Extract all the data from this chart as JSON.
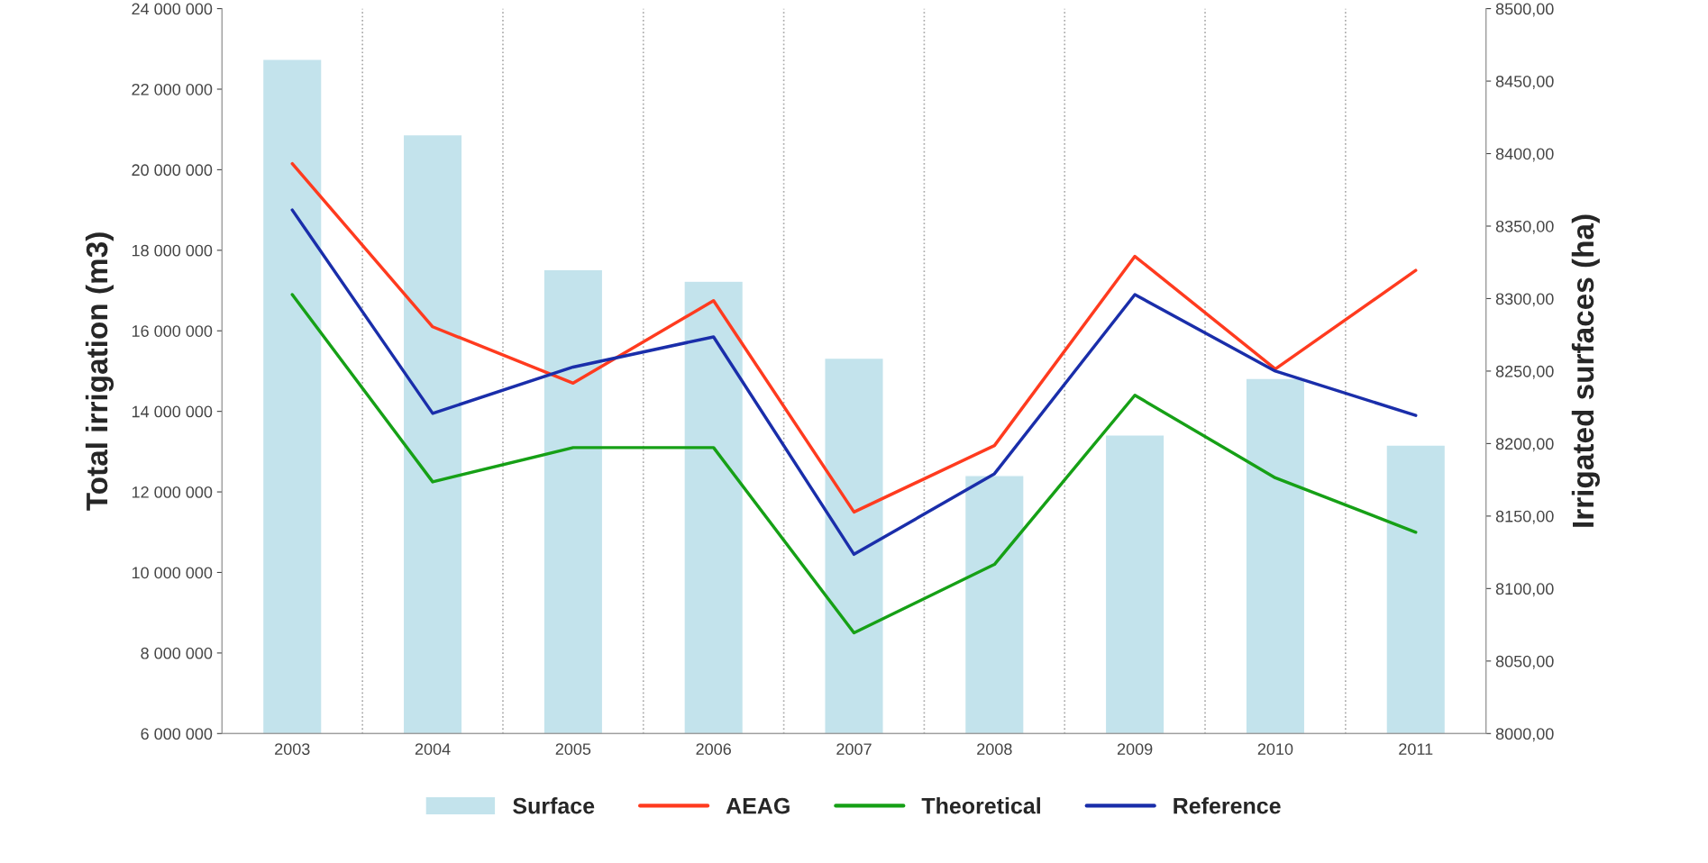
{
  "chart_data": {
    "type": "line",
    "ylabel": "Total irrigation (m3)",
    "y2label": "Irrigated surfaces (ha)",
    "categories": [
      "2003",
      "2004",
      "2005",
      "2006",
      "2007",
      "2008",
      "2009",
      "2010",
      "2011"
    ],
    "series": [
      {
        "name": "Surface",
        "type": "bar",
        "axis": "y2",
        "color": "#c3e3ec",
        "values": [
          8465,
          8413,
          8320,
          8312,
          8259,
          8178,
          8206,
          8245,
          8199
        ]
      },
      {
        "name": "AEAG",
        "color": "#ff3b1f",
        "values": [
          20150000,
          16100000,
          14700000,
          16750000,
          11500000,
          13150000,
          17850000,
          15050000,
          17500000
        ]
      },
      {
        "name": "Theoretical",
        "color": "#16a016",
        "values": [
          16900000,
          12250000,
          13100000,
          13100000,
          8500000,
          10200000,
          14400000,
          12350000,
          11000000
        ]
      },
      {
        "name": "Reference",
        "color": "#1a2eaa",
        "values": [
          19000000,
          13950000,
          15100000,
          15850000,
          10450000,
          12450000,
          16900000,
          15000000,
          13900000
        ]
      }
    ],
    "ylim": [
      6000000,
      24000000
    ],
    "yticks": [
      {
        "value": 6000000,
        "label": "6 000 000"
      },
      {
        "value": 8000000,
        "label": "8 000 000"
      },
      {
        "value": 10000000,
        "label": "10 000 000"
      },
      {
        "value": 12000000,
        "label": "12 000 000"
      },
      {
        "value": 14000000,
        "label": "14 000 000"
      },
      {
        "value": 16000000,
        "label": "16 000 000"
      },
      {
        "value": 18000000,
        "label": "18 000 000"
      },
      {
        "value": 20000000,
        "label": "20 000 000"
      },
      {
        "value": 22000000,
        "label": "22 000 000"
      },
      {
        "value": 24000000,
        "label": "24 000 000"
      }
    ],
    "y2lim": [
      8000,
      8500
    ],
    "y2ticks": [
      {
        "value": 8000,
        "label": "8000,00"
      },
      {
        "value": 8050,
        "label": "8050,00"
      },
      {
        "value": 8100,
        "label": "8100,00"
      },
      {
        "value": 8150,
        "label": "8150,00"
      },
      {
        "value": 8200,
        "label": "8200,00"
      },
      {
        "value": 8250,
        "label": "8250,00"
      },
      {
        "value": 8300,
        "label": "8300,00"
      },
      {
        "value": 8350,
        "label": "8350,00"
      },
      {
        "value": 8400,
        "label": "8400,00"
      },
      {
        "value": 8450,
        "label": "8450,00"
      },
      {
        "value": 8500,
        "label": "8500,00"
      }
    ],
    "grid": "x",
    "legend": "bottom",
    "marker": "none",
    "line_style": "solid"
  }
}
